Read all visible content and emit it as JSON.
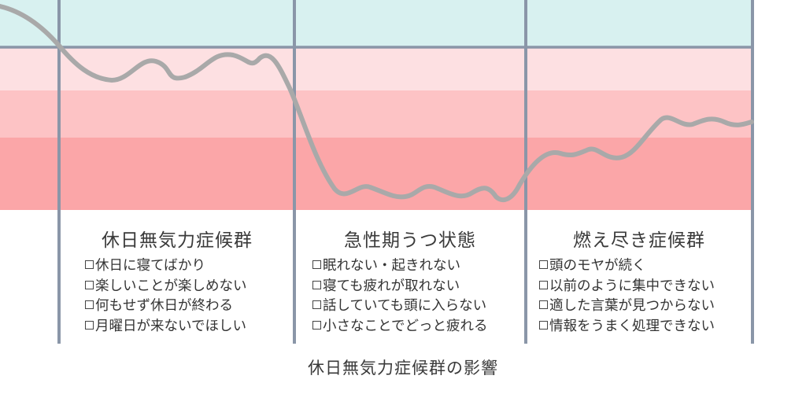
{
  "phases": [
    {
      "title": "休日無気力症候群",
      "items": [
        "休日に寝てばかり",
        "楽しいことが楽しめない",
        "何もせず休日が終わる",
        "月曜日が来ないでほしい"
      ]
    },
    {
      "title": "急性期うつ状態",
      "items": [
        "眠れない・起きれない",
        "寝ても疲れが取れない",
        "話していても頭に入らない",
        "小さなことでどっと疲れる"
      ]
    },
    {
      "title": "燃え尽き症候群",
      "items": [
        "頭のモヤが続く",
        "以前のように集中できない",
        "適した言葉が見つからない",
        "情報をうまく処理できない"
      ]
    }
  ],
  "caption": "休日無気力症候群の影響",
  "colors": {
    "band_top": "#d8f1f0",
    "band_light_pink": "#fde0e2",
    "band_mid_pink": "#fdc3c5",
    "band_deep_pink": "#fba6a8",
    "divider": "#8a96a8",
    "curve": "#a9a9a9"
  }
}
